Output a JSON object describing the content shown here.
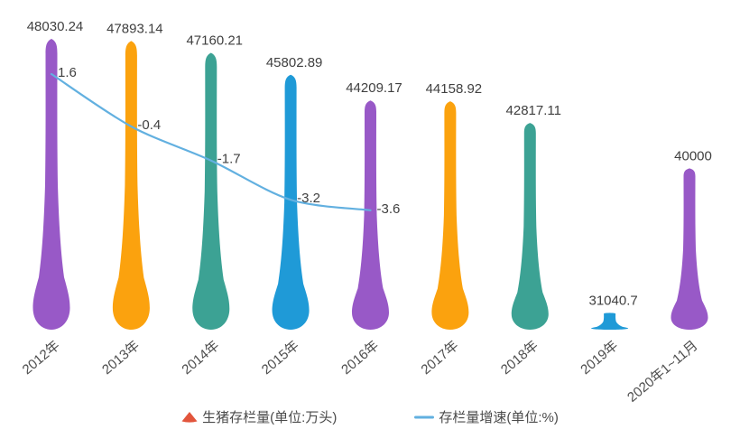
{
  "chart_data": {
    "type": "bar",
    "subtype": "pictorial-drop-bar-with-line",
    "categories": [
      "2012年",
      "2013年",
      "2014年",
      "2015年",
      "2016年",
      "2017年",
      "2018年",
      "2019年",
      "2020年1~11月"
    ],
    "series": [
      {
        "name": "生猪存栏量(单位:万头)",
        "type": "pictorialBar",
        "values": [
          48030.24,
          47893.14,
          47160.21,
          45802.89,
          44209.17,
          44158.92,
          42817.11,
          31040.7,
          40000
        ],
        "labels": [
          "48030.24",
          "47893.14",
          "47160.21",
          "45802.89",
          "44209.17",
          "44158.92",
          "42817.11",
          "31040.7",
          "40000"
        ],
        "colors": [
          "#9859C7",
          "#FBA20E",
          "#3CA294",
          "#1F9AD7",
          "#9859C7",
          "#FBA20E",
          "#3CA294",
          "#1F9AD7",
          "#9859C7"
        ]
      },
      {
        "name": "存栏量增速(单位:%)",
        "type": "line",
        "values": [
          1.6,
          -0.4,
          -1.7,
          -3.2,
          -3.6
        ],
        "labels": [
          "1.6",
          "-0.4",
          "-1.7",
          "-3.2",
          "-3.6"
        ],
        "color": "#62B0E0"
      }
    ],
    "ylim_bar": [
      30000,
      48500
    ],
    "ylim_line": [
      -4.5,
      2
    ],
    "grid": false,
    "legend_position": "bottom",
    "legend": [
      {
        "label": "生猪存栏量(单位:万头)",
        "marker": "triangle",
        "color": "#E2553C"
      },
      {
        "label": "存栏量增速(单位:%)",
        "marker": "line",
        "color": "#62B0E0"
      }
    ],
    "value_label_color": "#404040",
    "axis_label_color": "#4d4d4d"
  }
}
